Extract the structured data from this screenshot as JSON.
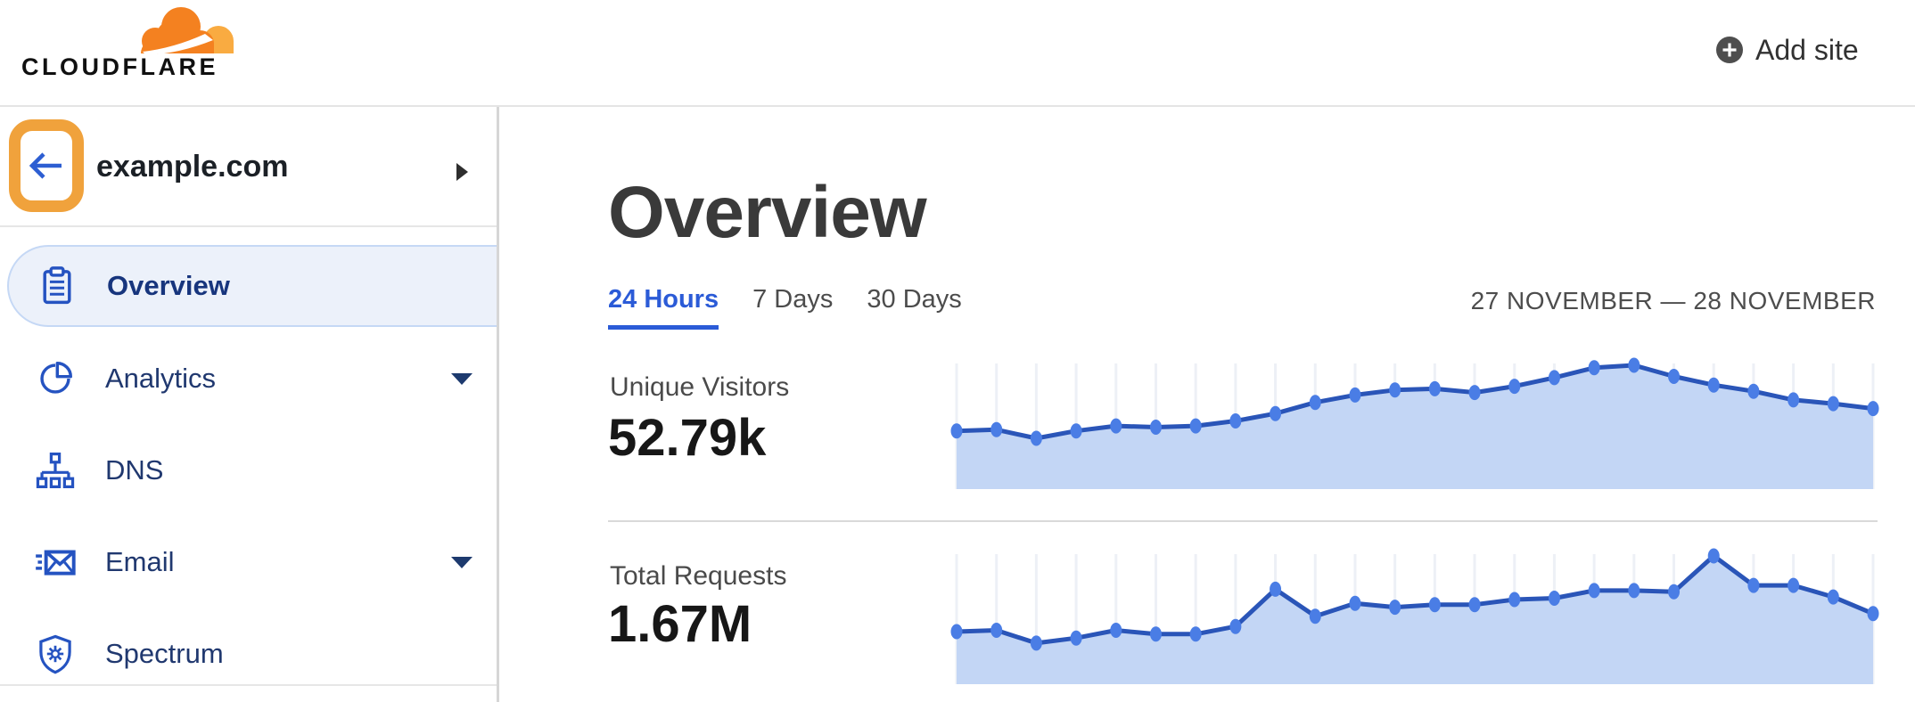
{
  "header": {
    "logo_text": "CLOUDFLARE",
    "add_site_label": "Add site"
  },
  "sidebar": {
    "site_name": "example.com",
    "items": [
      {
        "slug": "overview",
        "label": "Overview",
        "icon": "clipboard-icon",
        "selected": true,
        "has_caret": false
      },
      {
        "slug": "analytics",
        "label": "Analytics",
        "icon": "pie-chart-icon",
        "selected": false,
        "has_caret": true
      },
      {
        "slug": "dns",
        "label": "DNS",
        "icon": "dns-tree-icon",
        "selected": false,
        "has_caret": false
      },
      {
        "slug": "email",
        "label": "Email",
        "icon": "email-icon",
        "selected": false,
        "has_caret": true
      },
      {
        "slug": "spectrum",
        "label": "Spectrum",
        "icon": "spectrum-shield-icon",
        "selected": false,
        "has_caret": false
      }
    ]
  },
  "main": {
    "title": "Overview",
    "tabs": [
      {
        "label": "24 Hours",
        "active": true
      },
      {
        "label": "7 Days",
        "active": false
      },
      {
        "label": "30 Days",
        "active": false
      }
    ],
    "date_range": "27 NOVEMBER — 28 NOVEMBER",
    "stats": [
      {
        "label": "Unique Visitors",
        "value": "52.79k"
      },
      {
        "label": "Total Requests",
        "value": "1.67M"
      }
    ]
  },
  "colors": {
    "annotation_orange": "#f0a23c",
    "cloudflare_orange": "#f48120",
    "cloudflare_orange_light": "#f9ab41",
    "link_blue": "#2b5bd7",
    "icon_blue": "#2553c1",
    "nav_navy": "#20386f",
    "selected_pill_bg": "#ecf1fa",
    "chart_line": "#2a55b8",
    "chart_dot": "#4a7de5",
    "chart_fill": "#c3d6f5",
    "chart_grid": "#edf0f6"
  },
  "chart_data": [
    {
      "type": "area",
      "title": "Unique Visitors",
      "metric_value": "52.79k",
      "time_span": "24 Hours (27 November — 28 November)",
      "num_points": 24,
      "axes_visible": false,
      "legend": "none",
      "grid": "vertical gridlines at each hourly point",
      "values_normalized": [
        0.47,
        0.48,
        0.41,
        0.47,
        0.51,
        0.5,
        0.51,
        0.55,
        0.61,
        0.7,
        0.76,
        0.8,
        0.81,
        0.78,
        0.83,
        0.9,
        0.98,
        1.0,
        0.91,
        0.84,
        0.79,
        0.72,
        0.69,
        0.65
      ]
    },
    {
      "type": "area",
      "title": "Total Requests",
      "metric_value": "1.67M",
      "time_span": "24 Hours (27 November — 28 November)",
      "num_points": 24,
      "axes_visible": false,
      "legend": "none",
      "grid": "vertical gridlines at each hourly point",
      "values_normalized": [
        0.41,
        0.42,
        0.32,
        0.36,
        0.42,
        0.39,
        0.39,
        0.45,
        0.74,
        0.53,
        0.63,
        0.6,
        0.62,
        0.62,
        0.66,
        0.67,
        0.73,
        0.73,
        0.72,
        1.0,
        0.77,
        0.77,
        0.68,
        0.55
      ]
    }
  ]
}
